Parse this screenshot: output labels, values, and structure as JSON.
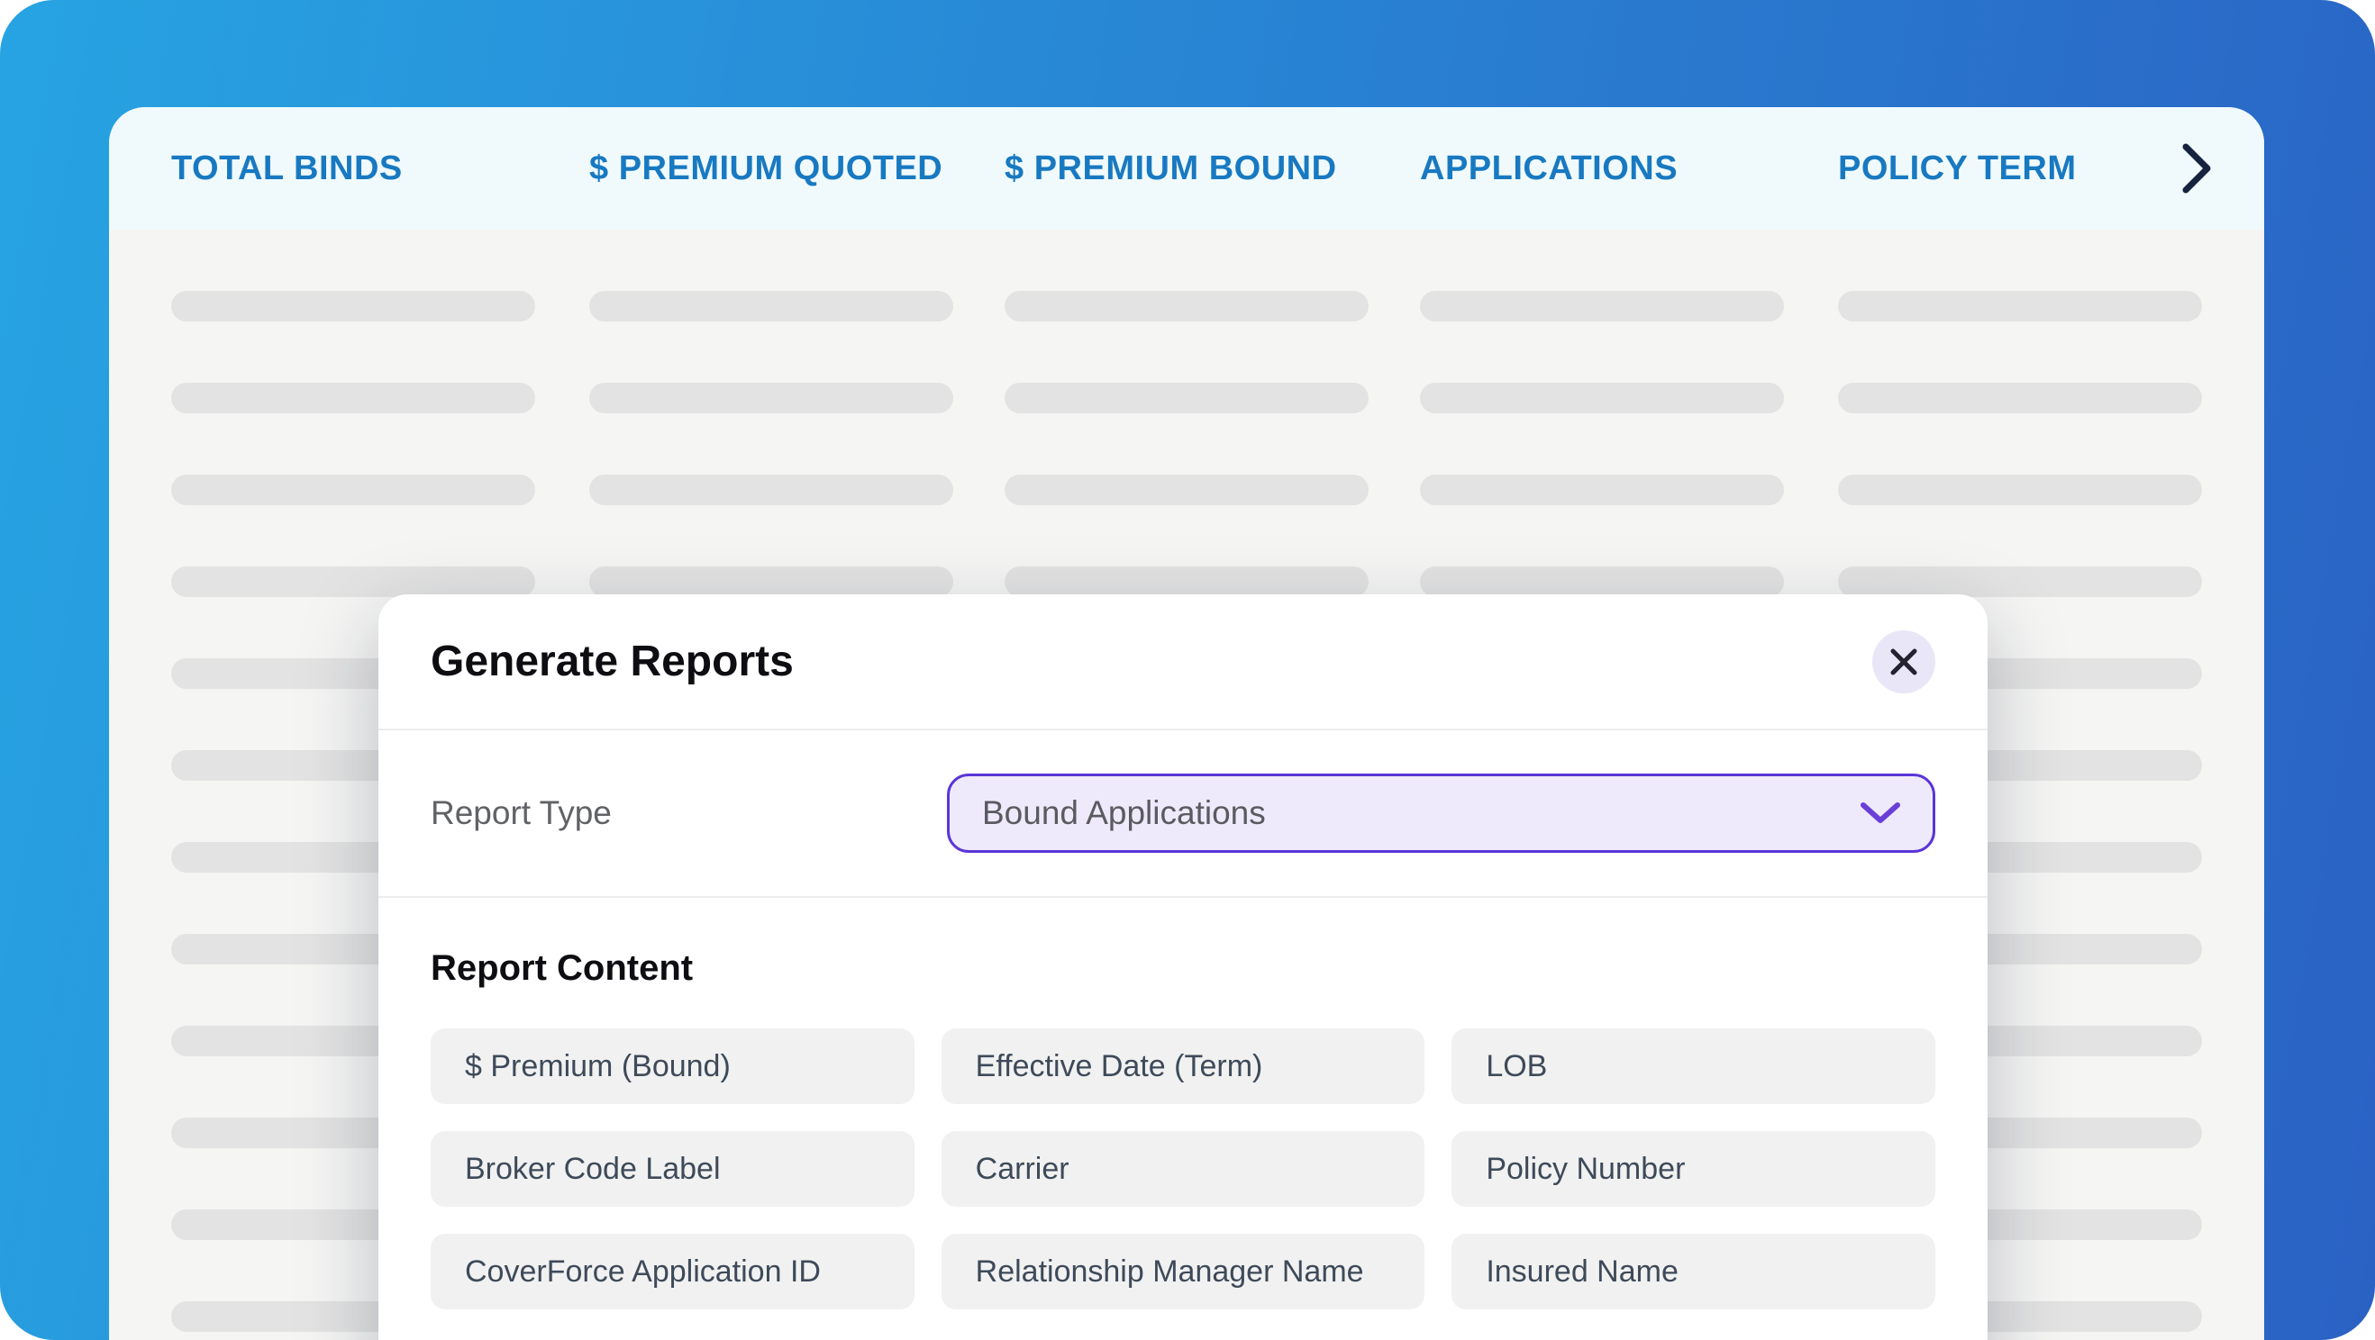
{
  "background": {
    "gradient_left_color": "#27a3e2",
    "gradient_right_color": "#2a62c4"
  },
  "table": {
    "columns": [
      {
        "label": "TOTAL BINDS"
      },
      {
        "label": "$ PREMIUM QUOTED"
      },
      {
        "label": "$ PREMIUM BOUND"
      },
      {
        "label": "APPLICATIONS"
      },
      {
        "label": "POLICY TERM"
      }
    ],
    "header_text_color": "#1879c1",
    "header_background": "#f0fafd",
    "next_icon": "chevron-right-icon",
    "skeleton": {
      "rows": 12,
      "cols": 5,
      "pill_color": "#e3e3e3"
    }
  },
  "modal": {
    "title": "Generate Reports",
    "close_icon": "x-icon",
    "report_type": {
      "label": "Report Type",
      "value": "Bound Applications",
      "accent_color": "#5b35d6"
    },
    "content": {
      "heading": "Report Content",
      "fields": [
        {
          "label": "$ Premium (Bound)"
        },
        {
          "label": "Effective Date (Term)"
        },
        {
          "label": "LOB"
        },
        {
          "label": "Broker Code Label"
        },
        {
          "label": "Carrier"
        },
        {
          "label": "Policy Number"
        },
        {
          "label": "CoverForce Application ID"
        },
        {
          "label": "Relationship Manager Name"
        },
        {
          "label": "Insured Name"
        }
      ]
    }
  }
}
